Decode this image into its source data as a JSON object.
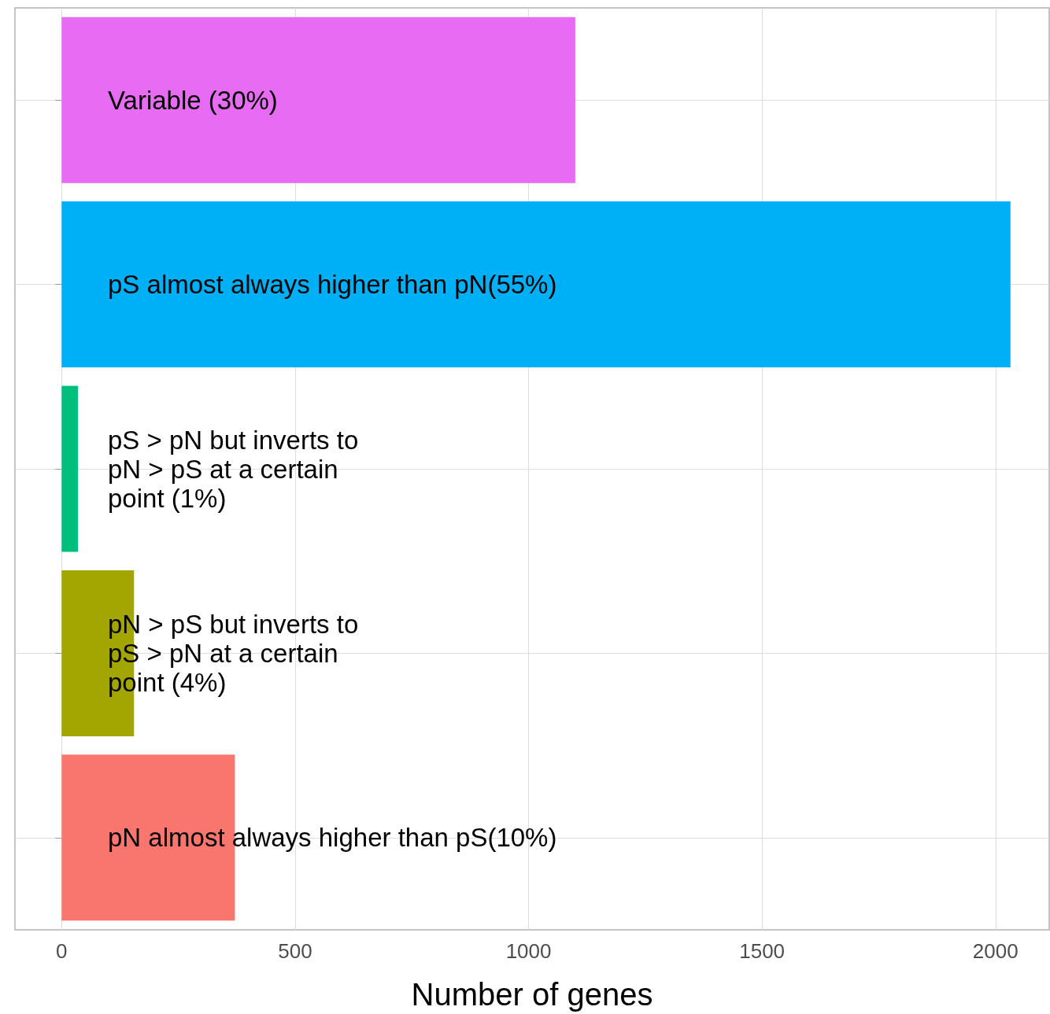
{
  "chart_data": {
    "type": "bar",
    "orientation": "horizontal",
    "xlabel": "Number of genes",
    "categories": [
      "Variable (30%)",
      "pS almost always higher than pN(55%)",
      "pS > pN but inverts to\npN > pS at a certain\npoint (1%)",
      "pN > pS but inverts to\npS > pN at a certain\npoint (4%)",
      "pN almost always higher than pS(10%)"
    ],
    "values": [
      1100,
      2032,
      35,
      155,
      371
    ],
    "colors": [
      "#e76bf3",
      "#00b0f6",
      "#00bf7d",
      "#a3a500",
      "#f8766d"
    ],
    "xlim": [
      -100,
      2115
    ],
    "xticks": [
      0,
      500,
      1000,
      1500,
      2000
    ],
    "grid": true
  }
}
